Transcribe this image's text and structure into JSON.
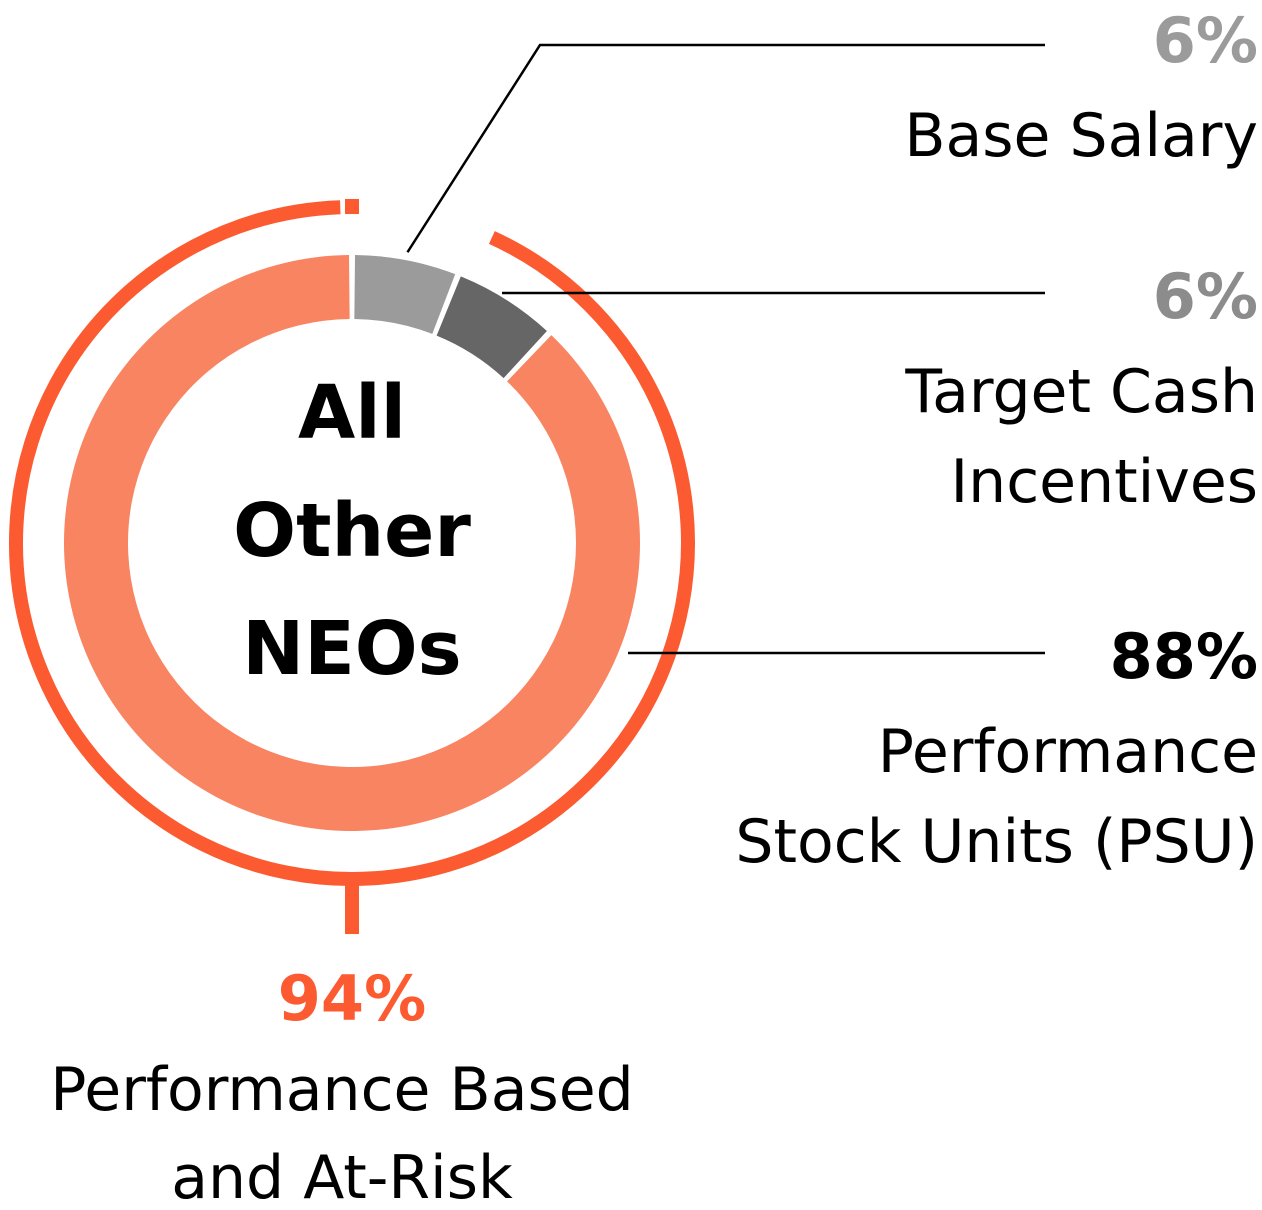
{
  "chart_data": {
    "type": "pie",
    "variant": "donut",
    "center_label": [
      "All",
      "Other",
      "NEOs"
    ],
    "slices": [
      {
        "name": "Base Salary",
        "label_lines": [
          "Base Salary"
        ],
        "value": 6,
        "value_label": "6%",
        "color": "#9b9b9b",
        "value_color": "#9b9b9b"
      },
      {
        "name": "Target Cash Incentives",
        "label_lines": [
          "Target Cash",
          "Incentives"
        ],
        "value": 6,
        "value_label": "6%",
        "color": "#666666",
        "value_color": "#8c8c8c"
      },
      {
        "name": "Performance Stock Units (PSU)",
        "label_lines": [
          "Performance",
          "Stock Units (PSU)"
        ],
        "value": 88,
        "value_label": "88%",
        "color": "#f88462",
        "value_color": "#000000"
      }
    ],
    "outer_arc": {
      "value": 94,
      "value_label": "94%",
      "label_lines": [
        "Performance Based",
        "and At-Risk"
      ],
      "color": "#fc5a30"
    }
  }
}
